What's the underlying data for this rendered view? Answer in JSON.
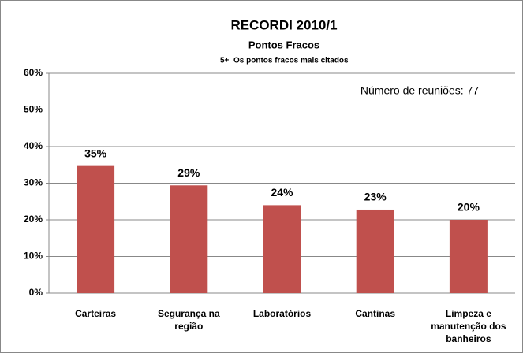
{
  "chart_data": {
    "type": "bar",
    "title": "RECORDI 2010/1",
    "subtitle": "Pontos Fracos",
    "note": [
      "5+",
      "Os pontos fracos mais citados"
    ],
    "note_color": "#c00000",
    "annotation": "Número de reuniões: 77",
    "categories": [
      "Carteiras",
      "Segurança na região",
      "Laboratórios",
      "Cantinas",
      "Limpeza e manutenção dos banheiros"
    ],
    "values": [
      34.7,
      29.4,
      24,
      22.8,
      20
    ],
    "value_labels": [
      "35%",
      "29%",
      "24%",
      "23%",
      "20%"
    ],
    "color": "#c0504d",
    "ylim": [
      0,
      60
    ],
    "yticks": [
      {
        "value": 0,
        "label": "0%"
      },
      {
        "value": 10,
        "label": "10%"
      },
      {
        "value": 20,
        "label": "20%"
      },
      {
        "value": 30,
        "label": "30%"
      },
      {
        "value": 40,
        "label": "40%"
      },
      {
        "value": 50,
        "label": "50%"
      },
      {
        "value": 60,
        "label": "60%"
      }
    ],
    "grid": true
  }
}
